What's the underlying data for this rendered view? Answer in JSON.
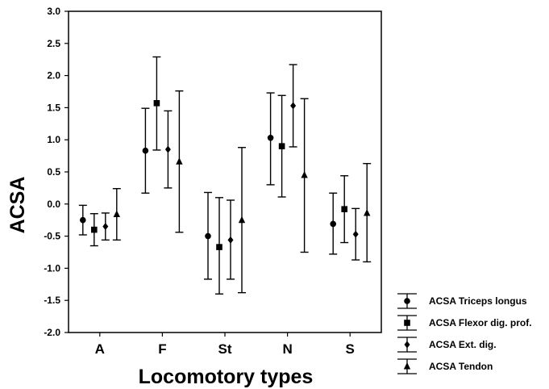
{
  "chart_data": {
    "type": "scatter",
    "subtype": "means with error bars",
    "title": "",
    "xlabel": "Locomotory types",
    "ylabel": "ACSA",
    "categories": [
      "A",
      "F",
      "St",
      "N",
      "S"
    ],
    "ylim": [
      -2.0,
      3.0
    ],
    "yticks": [
      "3.0",
      "2.5",
      "2.0",
      "1.5",
      "1.0",
      "0.5",
      "0.0",
      "-0.5",
      "-1.0",
      "-1.5",
      "-2.0"
    ],
    "grid": false,
    "legend_position": "bottom-right, outside plot",
    "series": [
      {
        "name": "ACSA Triceps longus",
        "marker": "circle",
        "values": [
          -0.25,
          0.83,
          -0.5,
          1.03,
          -0.31
        ],
        "lower": [
          -0.48,
          0.17,
          -1.17,
          0.3,
          -0.78
        ],
        "upper": [
          -0.02,
          1.49,
          0.18,
          1.73,
          0.17
        ]
      },
      {
        "name": "ACSA Flexor dig. prof.",
        "marker": "square",
        "values": [
          -0.4,
          1.57,
          -0.67,
          0.9,
          -0.08
        ],
        "lower": [
          -0.65,
          0.84,
          -1.4,
          0.11,
          -0.6
        ],
        "upper": [
          -0.15,
          2.29,
          0.1,
          1.69,
          0.44
        ]
      },
      {
        "name": "ACSA Ext. dig.",
        "marker": "diamond",
        "values": [
          -0.35,
          0.85,
          -0.56,
          1.53,
          -0.47
        ],
        "lower": [
          -0.56,
          0.25,
          -1.17,
          0.89,
          -0.87
        ],
        "upper": [
          -0.14,
          1.45,
          0.06,
          2.17,
          -0.07
        ]
      },
      {
        "name": "ACSA Tendon",
        "marker": "triangle",
        "values": [
          -0.16,
          0.66,
          -0.25,
          0.45,
          -0.14
        ],
        "lower": [
          -0.56,
          -0.44,
          -1.38,
          -0.75,
          -0.9
        ],
        "upper": [
          0.24,
          1.76,
          0.88,
          1.64,
          0.63
        ]
      }
    ]
  }
}
